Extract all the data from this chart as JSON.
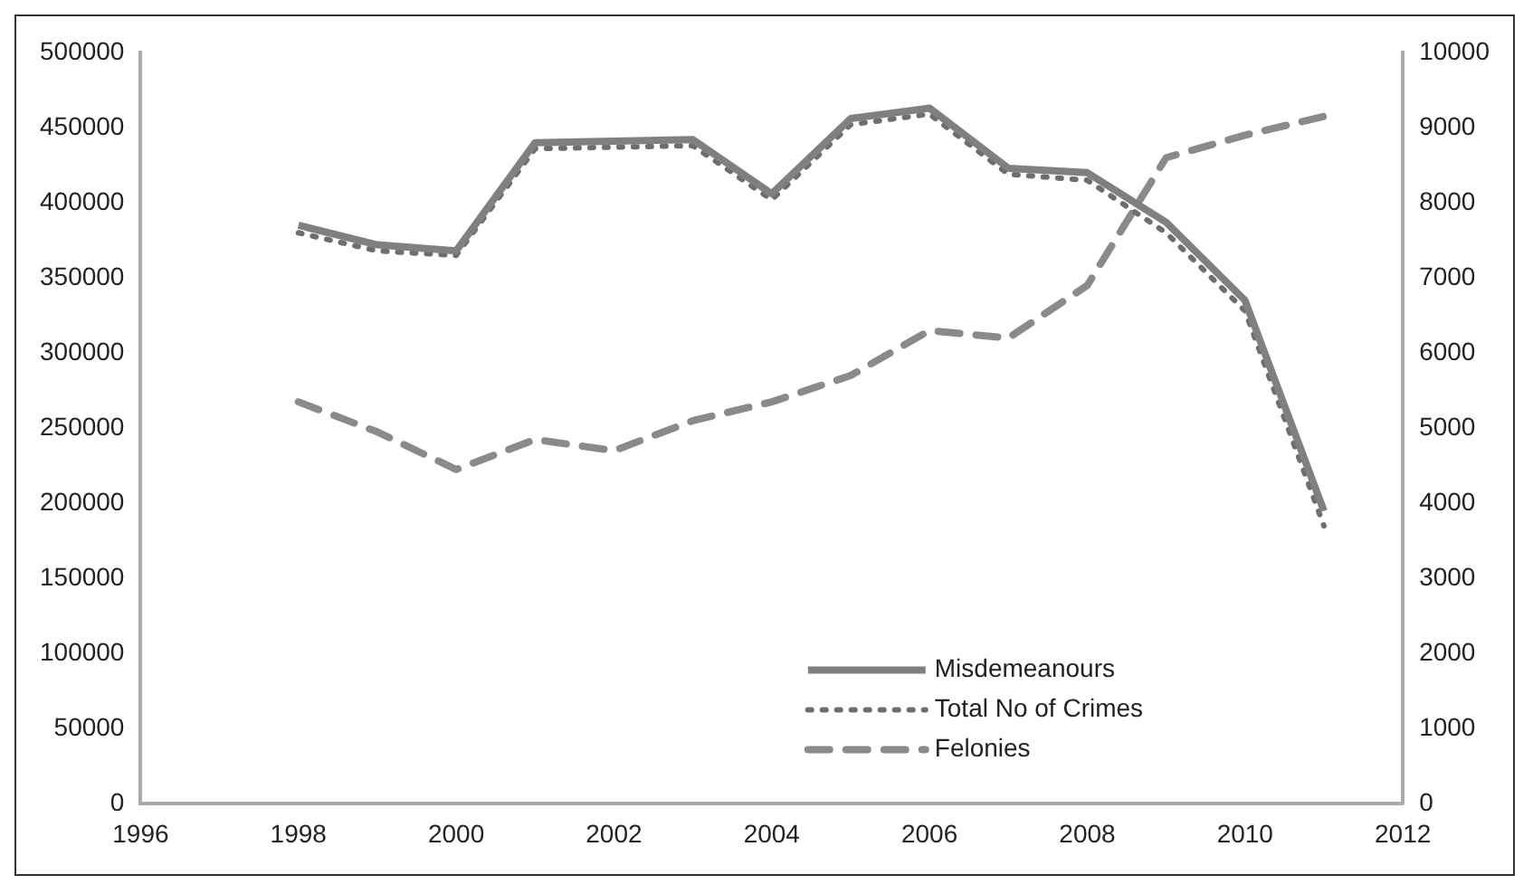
{
  "chart_data": {
    "type": "line",
    "x": [
      1998,
      1999,
      2000,
      2001,
      2002,
      2003,
      2004,
      2005,
      2006,
      2007,
      2008,
      2009,
      2010,
      2011
    ],
    "xlim": [
      1996,
      2012
    ],
    "xticks": [
      1996,
      1998,
      2000,
      2002,
      2004,
      2006,
      2008,
      2010,
      2012
    ],
    "ylim": [
      0,
      500000
    ],
    "yticks": [
      0,
      50000,
      100000,
      150000,
      200000,
      250000,
      300000,
      350000,
      400000,
      450000,
      500000
    ],
    "y2lim": [
      0,
      10000
    ],
    "y2ticks": [
      0,
      1000,
      2000,
      3000,
      4000,
      5000,
      6000,
      7000,
      8000,
      9000,
      10000
    ],
    "grid": false,
    "legend": "bottom",
    "marker": "none",
    "series": [
      {
        "name": "Misdemeanours",
        "color": "#808080",
        "line_style": "solid",
        "values": [
          385000,
          372000,
          368000,
          440000,
          441000,
          442000,
          406000,
          456000,
          463000,
          423000,
          420000,
          387000,
          335000,
          195000
        ]
      },
      {
        "name": "Total No of Crimes",
        "color": "#6e6e6e",
        "line_style": "dotted",
        "values": [
          380000,
          368000,
          365000,
          436000,
          437000,
          438000,
          402000,
          452000,
          459000,
          419000,
          415000,
          380000,
          328000,
          185000
        ]
      },
      {
        "name": "Felonies",
        "color": "#8a8a8a",
        "line_style": "dashed",
        "axis": "y2",
        "values": [
          5350,
          4950,
          4450,
          4850,
          4700,
          5100,
          5350,
          5700,
          6300,
          6200,
          6900,
          8600,
          8900,
          9150
        ]
      }
    ]
  }
}
